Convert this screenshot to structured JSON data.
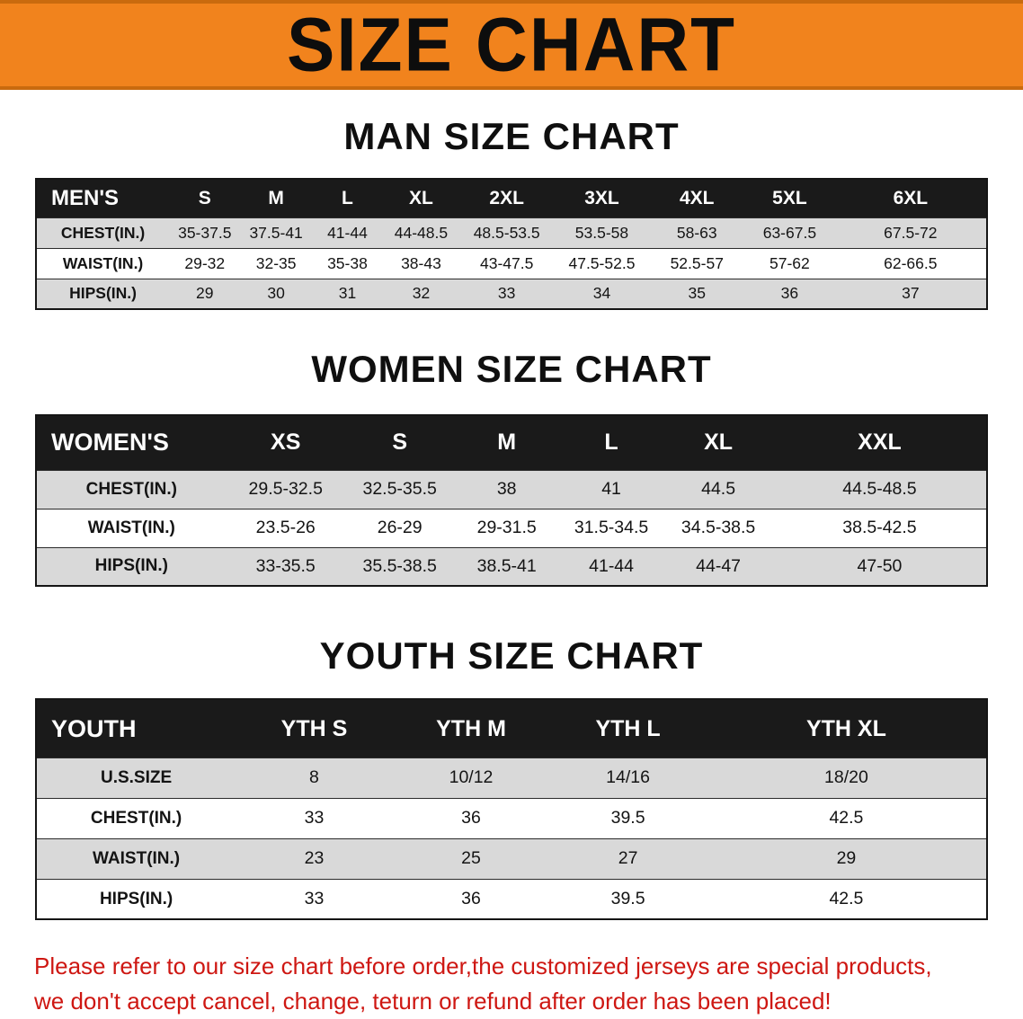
{
  "banner": {
    "title": "SIZE CHART"
  },
  "colors": {
    "banner_background": "#F1831D",
    "table_header_background": "#1a1a1a",
    "row_stripe": "#d9d9d9",
    "note_text": "#CE1712"
  },
  "tables": {
    "men": {
      "heading": "MAN SIZE CHART",
      "header": [
        "MEN'S",
        "S",
        "M",
        "L",
        "XL",
        "2XL",
        "3XL",
        "4XL",
        "5XL",
        "6XL"
      ],
      "rows": [
        [
          "CHEST(IN.)",
          "35-37.5",
          "37.5-41",
          "41-44",
          "44-48.5",
          "48.5-53.5",
          "53.5-58",
          "58-63",
          "63-67.5",
          "67.5-72"
        ],
        [
          "WAIST(IN.)",
          "29-32",
          "32-35",
          "35-38",
          "38-43",
          "43-47.5",
          "47.5-52.5",
          "52.5-57",
          "57-62",
          "62-66.5"
        ],
        [
          "HIPS(IN.)",
          "29",
          "30",
          "31",
          "32",
          "33",
          "34",
          "35",
          "36",
          "37"
        ]
      ]
    },
    "women": {
      "heading": "WOMEN SIZE CHART",
      "header": [
        "WOMEN'S",
        "XS",
        "S",
        "M",
        "L",
        "XL",
        "XXL"
      ],
      "rows": [
        [
          "CHEST(IN.)",
          "29.5-32.5",
          "32.5-35.5",
          "38",
          "41",
          "44.5",
          "44.5-48.5"
        ],
        [
          "WAIST(IN.)",
          "23.5-26",
          "26-29",
          "29-31.5",
          "31.5-34.5",
          "34.5-38.5",
          "38.5-42.5"
        ],
        [
          "HIPS(IN.)",
          "33-35.5",
          "35.5-38.5",
          "38.5-41",
          "41-44",
          "44-47",
          "47-50"
        ]
      ]
    },
    "youth": {
      "heading": "YOUTH SIZE CHART",
      "header": [
        "YOUTH",
        "YTH S",
        "YTH M",
        "YTH L",
        "YTH XL"
      ],
      "rows": [
        [
          "U.S.SIZE",
          "8",
          "10/12",
          "14/16",
          "18/20"
        ],
        [
          "CHEST(IN.)",
          "33",
          "36",
          "39.5",
          "42.5"
        ],
        [
          "WAIST(IN.)",
          "23",
          "25",
          "27",
          "29"
        ],
        [
          "HIPS(IN.)",
          "33",
          "36",
          "39.5",
          "42.5"
        ]
      ]
    }
  },
  "note": {
    "line1": "Please refer to our size chart before order,the customized jerseys are special products,",
    "line2": "we don't accept cancel, change, teturn or refund after order has been placed!"
  }
}
